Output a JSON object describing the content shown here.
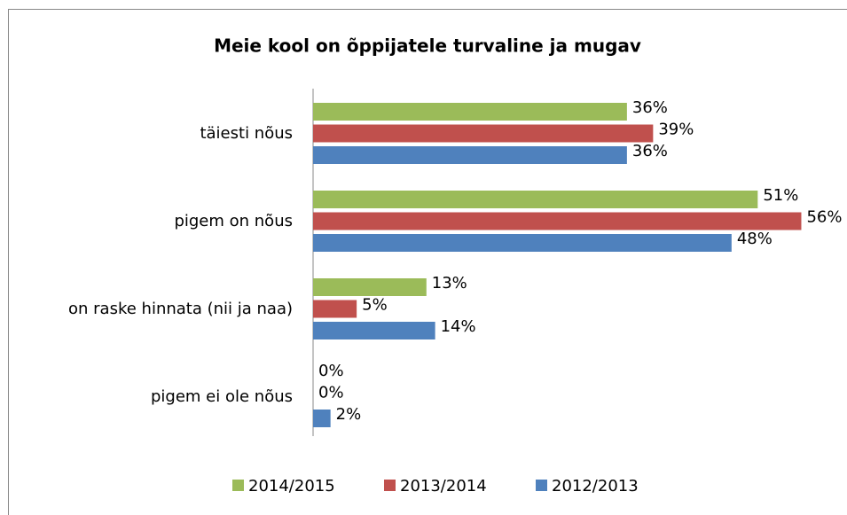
{
  "chart_data": {
    "type": "barh",
    "title": "Meie kool on  õppijatele turvaline ja mugav",
    "categories": [
      "täiesti nõus",
      "pigem on nõus",
      "on raske hinnata (nii ja naa)",
      "pigem ei ole nõus"
    ],
    "series": [
      {
        "name": "2014/2015",
        "color": "#9bbb59",
        "values": [
          36,
          51,
          13,
          0
        ],
        "value_labels": [
          "36%",
          "51%",
          "13%",
          "0%"
        ]
      },
      {
        "name": "2013/2014",
        "color": "#c0504d",
        "values": [
          39,
          56,
          5,
          0
        ],
        "value_labels": [
          "39%",
          "56%",
          "5%",
          "0%"
        ]
      },
      {
        "name": "2012/2013",
        "color": "#4f81bd",
        "values": [
          36,
          48,
          14,
          2
        ],
        "value_labels": [
          "36%",
          "48%",
          "14%",
          "2%"
        ]
      }
    ],
    "legend": "bottom"
  }
}
